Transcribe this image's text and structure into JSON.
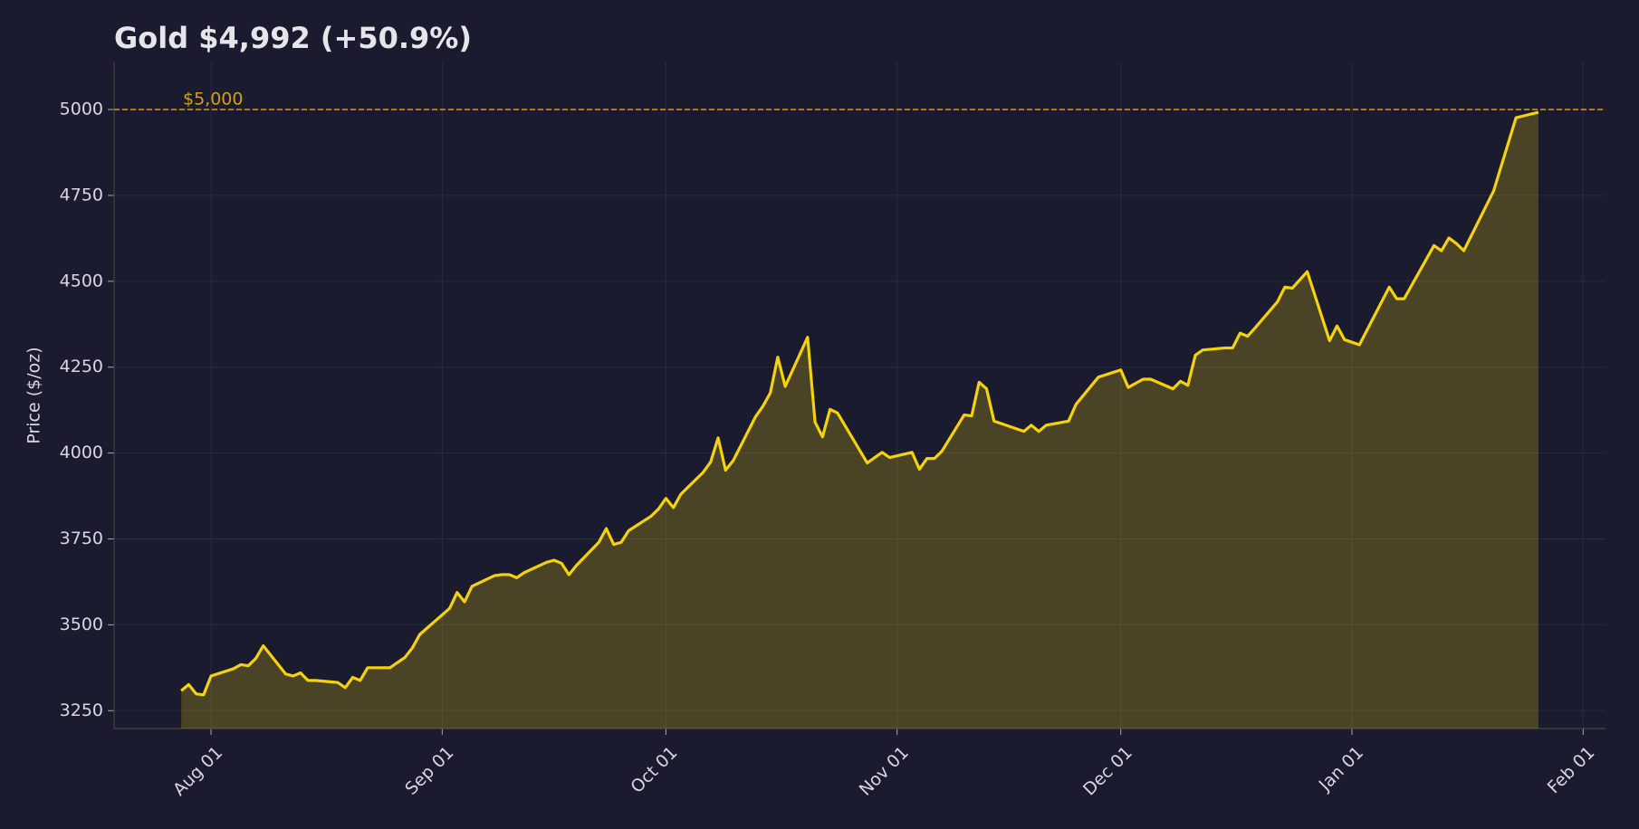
{
  "chart_data": {
    "type": "line",
    "title": "Gold  $4,992  (+50.9%)",
    "y_label": "Price ($/oz)",
    "x": [
      "Jul 28",
      "Jul 29",
      "Jul 30",
      "Jul 31",
      "Aug 01",
      "Aug 04",
      "Aug 05",
      "Aug 06",
      "Aug 07",
      "Aug 08",
      "Aug 11",
      "Aug 12",
      "Aug 13",
      "Aug 14",
      "Aug 15",
      "Aug 18",
      "Aug 19",
      "Aug 20",
      "Aug 21",
      "Aug 22",
      "Aug 25",
      "Aug 26",
      "Aug 27",
      "Aug 28",
      "Aug 29",
      "Sep 02",
      "Sep 03",
      "Sep 04",
      "Sep 05",
      "Sep 08",
      "Sep 09",
      "Sep 10",
      "Sep 11",
      "Sep 12",
      "Sep 15",
      "Sep 16",
      "Sep 17",
      "Sep 18",
      "Sep 19",
      "Sep 22",
      "Sep 23",
      "Sep 24",
      "Sep 25",
      "Sep 26",
      "Sep 29",
      "Sep 30",
      "Oct 01",
      "Oct 02",
      "Oct 03",
      "Oct 06",
      "Oct 07",
      "Oct 08",
      "Oct 09",
      "Oct 10",
      "Oct 13",
      "Oct 14",
      "Oct 15",
      "Oct 16",
      "Oct 17",
      "Oct 20",
      "Oct 21",
      "Oct 22",
      "Oct 23",
      "Oct 24",
      "Oct 28",
      "Oct 29",
      "Oct 30",
      "Oct 31",
      "Nov 03",
      "Nov 04",
      "Nov 05",
      "Nov 06",
      "Nov 07",
      "Nov 10",
      "Nov 11",
      "Nov 12",
      "Nov 13",
      "Nov 14",
      "Nov 18",
      "Nov 19",
      "Nov 20",
      "Nov 21",
      "Nov 24",
      "Nov 25",
      "Nov 28",
      "Dec 01",
      "Dec 02",
      "Dec 03",
      "Dec 04",
      "Dec 05",
      "Dec 08",
      "Dec 09",
      "Dec 10",
      "Dec 11",
      "Dec 12",
      "Dec 15",
      "Dec 16",
      "Dec 17",
      "Dec 18",
      "Dec 19",
      "Dec 22",
      "Dec 23",
      "Dec 24",
      "Dec 26",
      "Dec 29",
      "Dec 30",
      "Dec 31",
      "Jan 02",
      "Jan 06",
      "Jan 07",
      "Jan 08",
      "Jan 12",
      "Jan 13",
      "Jan 14",
      "Jan 15",
      "Jan 16",
      "Jan 20",
      "Jan 23",
      "Jan 26"
    ],
    "series": [
      {
        "name": "Gold",
        "color": "#f5d20a",
        "values": [
          3308,
          3326,
          3299,
          3296,
          3351,
          3372,
          3384,
          3381,
          3402,
          3439,
          3357,
          3351,
          3360,
          3338,
          3338,
          3332,
          3317,
          3347,
          3338,
          3375,
          3375,
          3390,
          3405,
          3433,
          3472,
          3548,
          3594,
          3567,
          3612,
          3643,
          3646,
          3646,
          3637,
          3652,
          3682,
          3688,
          3679,
          3646,
          3673,
          3740,
          3780,
          3734,
          3740,
          3774,
          3816,
          3837,
          3868,
          3841,
          3880,
          3944,
          3974,
          4044,
          3950,
          3977,
          4105,
          4136,
          4175,
          4279,
          4194,
          4337,
          4090,
          4047,
          4127,
          4117,
          3971,
          3987,
          4002,
          3987,
          4002,
          3953,
          3984,
          3984,
          4005,
          4111,
          4108,
          4206,
          4187,
          4093,
          4063,
          4081,
          4063,
          4081,
          4093,
          4142,
          4221,
          4242,
          4191,
          4203,
          4215,
          4215,
          4187,
          4209,
          4197,
          4285,
          4300,
          4306,
          4306,
          4349,
          4340,
          4364,
          4440,
          4483,
          4480,
          4528,
          4327,
          4370,
          4330,
          4315,
          4483,
          4449,
          4449,
          4604,
          4589,
          4626,
          4610,
          4589,
          4763,
          4976,
          4992
        ]
      }
    ],
    "xlim": [
      "Jul 19",
      "Feb 04"
    ],
    "xticks": [
      "Aug 01",
      "Sep 01",
      "Oct 01",
      "Nov 01",
      "Dec 01",
      "Jan 01",
      "Feb 01"
    ],
    "ylim": [
      3198,
      5137
    ],
    "yticks": [
      3250,
      3500,
      3750,
      4000,
      4250,
      4500,
      4750,
      5000
    ],
    "grid": true,
    "reference_line": {
      "value": 5000,
      "label": "$5,000",
      "color": "#d4a017"
    }
  }
}
